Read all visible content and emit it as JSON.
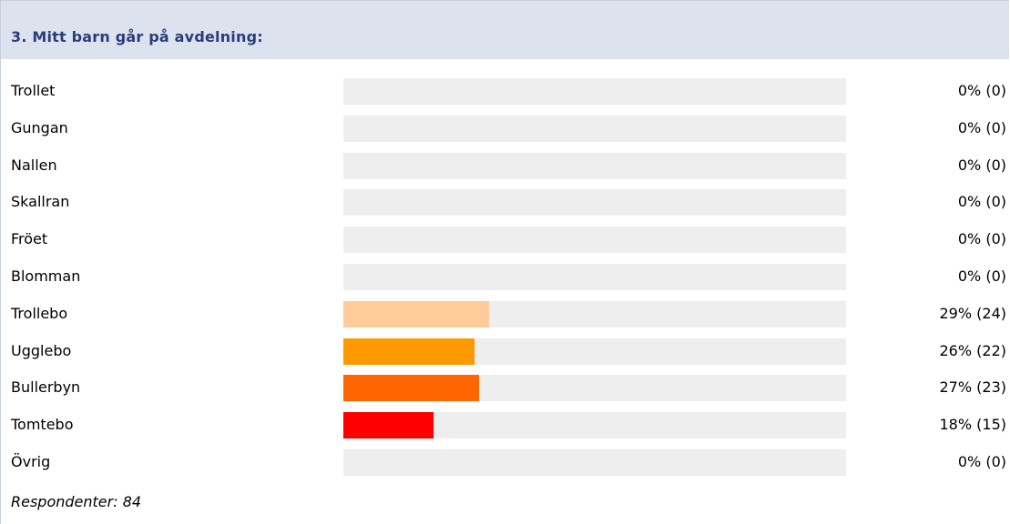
{
  "question": {
    "title": "3. Mitt barn går på avdelning:"
  },
  "chart_data": {
    "type": "bar",
    "orientation": "horizontal",
    "title": "3. Mitt barn går på avdelning:",
    "categories": [
      "Trollet",
      "Gungan",
      "Nallen",
      "Skallran",
      "Fröet",
      "Blomman",
      "Trollebo",
      "Ugglebo",
      "Bullerbyn",
      "Tomtebo",
      "Övrig"
    ],
    "values": [
      0,
      0,
      0,
      0,
      0,
      0,
      29,
      26,
      27,
      18,
      0
    ],
    "counts": [
      0,
      0,
      0,
      0,
      0,
      0,
      24,
      22,
      23,
      15,
      0
    ],
    "value_labels": [
      "0% (0)",
      "0% (0)",
      "0% (0)",
      "0% (0)",
      "0% (0)",
      "0% (0)",
      "29% (24)",
      "26% (22)",
      "27% (23)",
      "18% (15)",
      "0% (0)"
    ],
    "colors": [
      "#ffcc99",
      "#ffcc99",
      "#ffcc99",
      "#ffcc99",
      "#ffcc99",
      "#ffcc99",
      "#ffcc99",
      "#ff9900",
      "#ff6600",
      "#ff0000",
      "#ff0000"
    ],
    "unit": "%",
    "xlim": [
      0,
      100
    ],
    "track_color": "#eeeeee",
    "grid": false
  },
  "footer": {
    "respondents": "Respondenter: 84"
  }
}
